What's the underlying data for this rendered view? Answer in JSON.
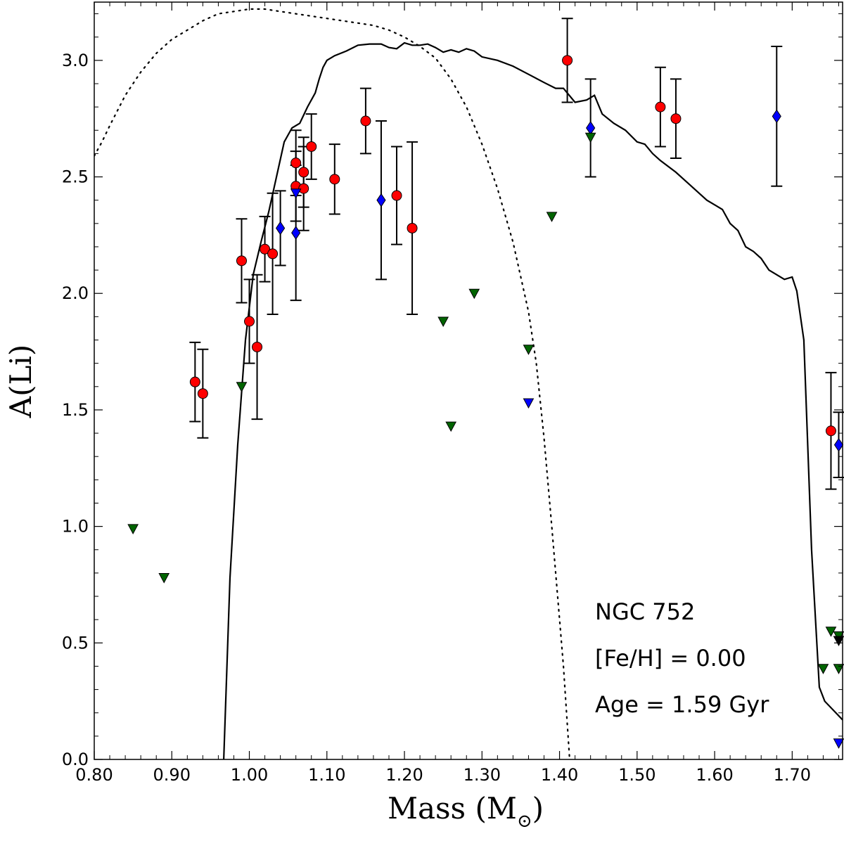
{
  "chart_data": {
    "type": "scatter",
    "xlabel": "Mass (M",
    "xlabel_sub": "⊙",
    "xlabel_close": ")",
    "ylabel": "A(Li)",
    "xlim": [
      0.8,
      1.765
    ],
    "ylim": [
      0.0,
      3.25
    ],
    "x_ticks": [
      0.8,
      0.9,
      1.0,
      1.1,
      1.2,
      1.3,
      1.4,
      1.5,
      1.6,
      1.7
    ],
    "x_tick_labels": [
      "0.80",
      "0.90",
      "1.00",
      "1.10",
      "1.20",
      "1.30",
      "1.40",
      "1.50",
      "1.60",
      "1.70"
    ],
    "y_ticks": [
      0.0,
      0.5,
      1.0,
      1.5,
      2.0,
      2.5,
      3.0
    ],
    "y_tick_labels": [
      "0.0",
      "0.5",
      "1.0",
      "1.5",
      "2.0",
      "2.5",
      "3.0"
    ],
    "annotations": [
      "NGC 752",
      "[Fe/H] = 0.00",
      "Age = 1.59 Gyr"
    ],
    "colors": {
      "detection": "#ff0000",
      "blue": "#0000ff",
      "upper_limit": "#006400",
      "line": "#000000"
    },
    "series": [
      {
        "name": "detections",
        "marker": "circle",
        "points": [
          {
            "x": 0.93,
            "y": 1.62,
            "err": 0.17
          },
          {
            "x": 0.94,
            "y": 1.57,
            "err": 0.19
          },
          {
            "x": 0.99,
            "y": 2.14,
            "err": 0.18
          },
          {
            "x": 1.0,
            "y": 1.88,
            "err": 0.18
          },
          {
            "x": 1.01,
            "y": 1.77,
            "err": 0.31
          },
          {
            "x": 1.02,
            "y": 2.19,
            "err": 0.14
          },
          {
            "x": 1.03,
            "y": 2.17,
            "err": 0.26
          },
          {
            "x": 1.06,
            "y": 2.56,
            "err": 0.14
          },
          {
            "x": 1.06,
            "y": 2.46,
            "err": 0.15
          },
          {
            "x": 1.07,
            "y": 2.52,
            "err": 0.15
          },
          {
            "x": 1.07,
            "y": 2.45,
            "err": 0.18
          },
          {
            "x": 1.08,
            "y": 2.63,
            "err": 0.14
          },
          {
            "x": 1.11,
            "y": 2.49,
            "err": 0.15
          },
          {
            "x": 1.15,
            "y": 2.74,
            "err": 0.14
          },
          {
            "x": 1.19,
            "y": 2.42,
            "err": 0.21
          },
          {
            "x": 1.21,
            "y": 2.28,
            "err": 0.37
          },
          {
            "x": 1.41,
            "y": 3.0,
            "err": 0.18
          },
          {
            "x": 1.53,
            "y": 2.8,
            "err": 0.17
          },
          {
            "x": 1.55,
            "y": 2.75,
            "err": 0.17
          },
          {
            "x": 1.75,
            "y": 1.41,
            "err": 0.25
          }
        ]
      },
      {
        "name": "blue detections",
        "marker": "diamond",
        "points": [
          {
            "x": 1.04,
            "y": 2.28,
            "err": 0.16
          },
          {
            "x": 1.06,
            "y": 2.26,
            "err": 0.29
          },
          {
            "x": 1.17,
            "y": 2.4,
            "err": 0.34
          },
          {
            "x": 1.44,
            "y": 2.71,
            "err": 0.21
          },
          {
            "x": 1.68,
            "y": 2.76,
            "err": 0.3
          },
          {
            "x": 1.76,
            "y": 1.35,
            "err": 0.14
          }
        ]
      },
      {
        "name": "blue upper limits",
        "marker": "triangle-down",
        "points": [
          {
            "x": 1.06,
            "y": 2.43
          },
          {
            "x": 1.36,
            "y": 1.53
          },
          {
            "x": 1.76,
            "y": 0.07
          }
        ]
      },
      {
        "name": "upper limits",
        "marker": "triangle-down",
        "points": [
          {
            "x": 0.85,
            "y": 0.99
          },
          {
            "x": 0.89,
            "y": 0.78
          },
          {
            "x": 0.99,
            "y": 1.6
          },
          {
            "x": 1.25,
            "y": 1.88
          },
          {
            "x": 1.26,
            "y": 1.43
          },
          {
            "x": 1.29,
            "y": 2.0
          },
          {
            "x": 1.36,
            "y": 1.76
          },
          {
            "x": 1.39,
            "y": 2.33
          },
          {
            "x": 1.44,
            "y": 2.67
          },
          {
            "x": 1.74,
            "y": 0.39
          },
          {
            "x": 1.75,
            "y": 0.55
          },
          {
            "x": 1.76,
            "y": 0.53
          },
          {
            "x": 1.76,
            "y": 0.39
          }
        ]
      },
      {
        "name": "black upper limits",
        "marker": "triangle-down",
        "points": [
          {
            "x": 1.76,
            "y": 0.51
          }
        ]
      },
      {
        "name": "model solid",
        "style": "solid",
        "x": [
          0.967,
          0.975,
          0.985,
          0.995,
          1.005,
          1.015,
          1.025,
          1.035,
          1.045,
          1.055,
          1.065,
          1.075,
          1.085,
          1.09,
          1.095,
          1.1,
          1.11,
          1.125,
          1.14,
          1.155,
          1.17,
          1.18,
          1.19,
          1.2,
          1.21,
          1.22,
          1.23,
          1.24,
          1.25,
          1.26,
          1.27,
          1.28,
          1.29,
          1.3,
          1.32,
          1.34,
          1.36,
          1.38,
          1.395,
          1.405,
          1.42,
          1.435,
          1.445,
          1.455,
          1.47,
          1.485,
          1.5,
          1.51,
          1.52,
          1.53,
          1.55,
          1.57,
          1.59,
          1.6,
          1.61,
          1.62,
          1.63,
          1.64,
          1.65,
          1.66,
          1.67,
          1.68,
          1.69,
          1.7,
          1.706,
          1.715,
          1.725,
          1.735,
          1.742,
          1.765
        ],
        "y": [
          0.0,
          0.78,
          1.35,
          1.8,
          2.08,
          2.22,
          2.35,
          2.5,
          2.65,
          2.71,
          2.73,
          2.8,
          2.86,
          2.92,
          2.97,
          3.0,
          3.02,
          3.04,
          3.065,
          3.07,
          3.07,
          3.055,
          3.05,
          3.075,
          3.065,
          3.065,
          3.07,
          3.055,
          3.035,
          3.045,
          3.035,
          3.05,
          3.04,
          3.015,
          3.0,
          2.975,
          2.94,
          2.905,
          2.88,
          2.88,
          2.82,
          2.83,
          2.85,
          2.77,
          2.73,
          2.7,
          2.65,
          2.64,
          2.6,
          2.57,
          2.52,
          2.46,
          2.4,
          2.38,
          2.36,
          2.3,
          2.27,
          2.2,
          2.18,
          2.15,
          2.1,
          2.08,
          2.06,
          2.07,
          2.01,
          1.8,
          0.9,
          0.31,
          0.25,
          0.17
        ]
      },
      {
        "name": "model dotted",
        "style": "dotted",
        "x": [
          0.8,
          0.81,
          0.82,
          0.84,
          0.86,
          0.88,
          0.9,
          0.92,
          0.94,
          0.96,
          0.98,
          1.0,
          1.02,
          1.04,
          1.06,
          1.08,
          1.1,
          1.12,
          1.14,
          1.16,
          1.18,
          1.2,
          1.22,
          1.24,
          1.26,
          1.28,
          1.3,
          1.32,
          1.34,
          1.36,
          1.37,
          1.38,
          1.39,
          1.4,
          1.405,
          1.41,
          1.413
        ],
        "y": [
          2.59,
          2.65,
          2.72,
          2.85,
          2.95,
          3.03,
          3.09,
          3.13,
          3.17,
          3.2,
          3.21,
          3.22,
          3.22,
          3.21,
          3.2,
          3.19,
          3.18,
          3.17,
          3.16,
          3.15,
          3.13,
          3.1,
          3.06,
          3.01,
          2.92,
          2.8,
          2.64,
          2.45,
          2.22,
          1.92,
          1.7,
          1.38,
          1.0,
          0.6,
          0.4,
          0.15,
          0.0
        ]
      }
    ]
  }
}
